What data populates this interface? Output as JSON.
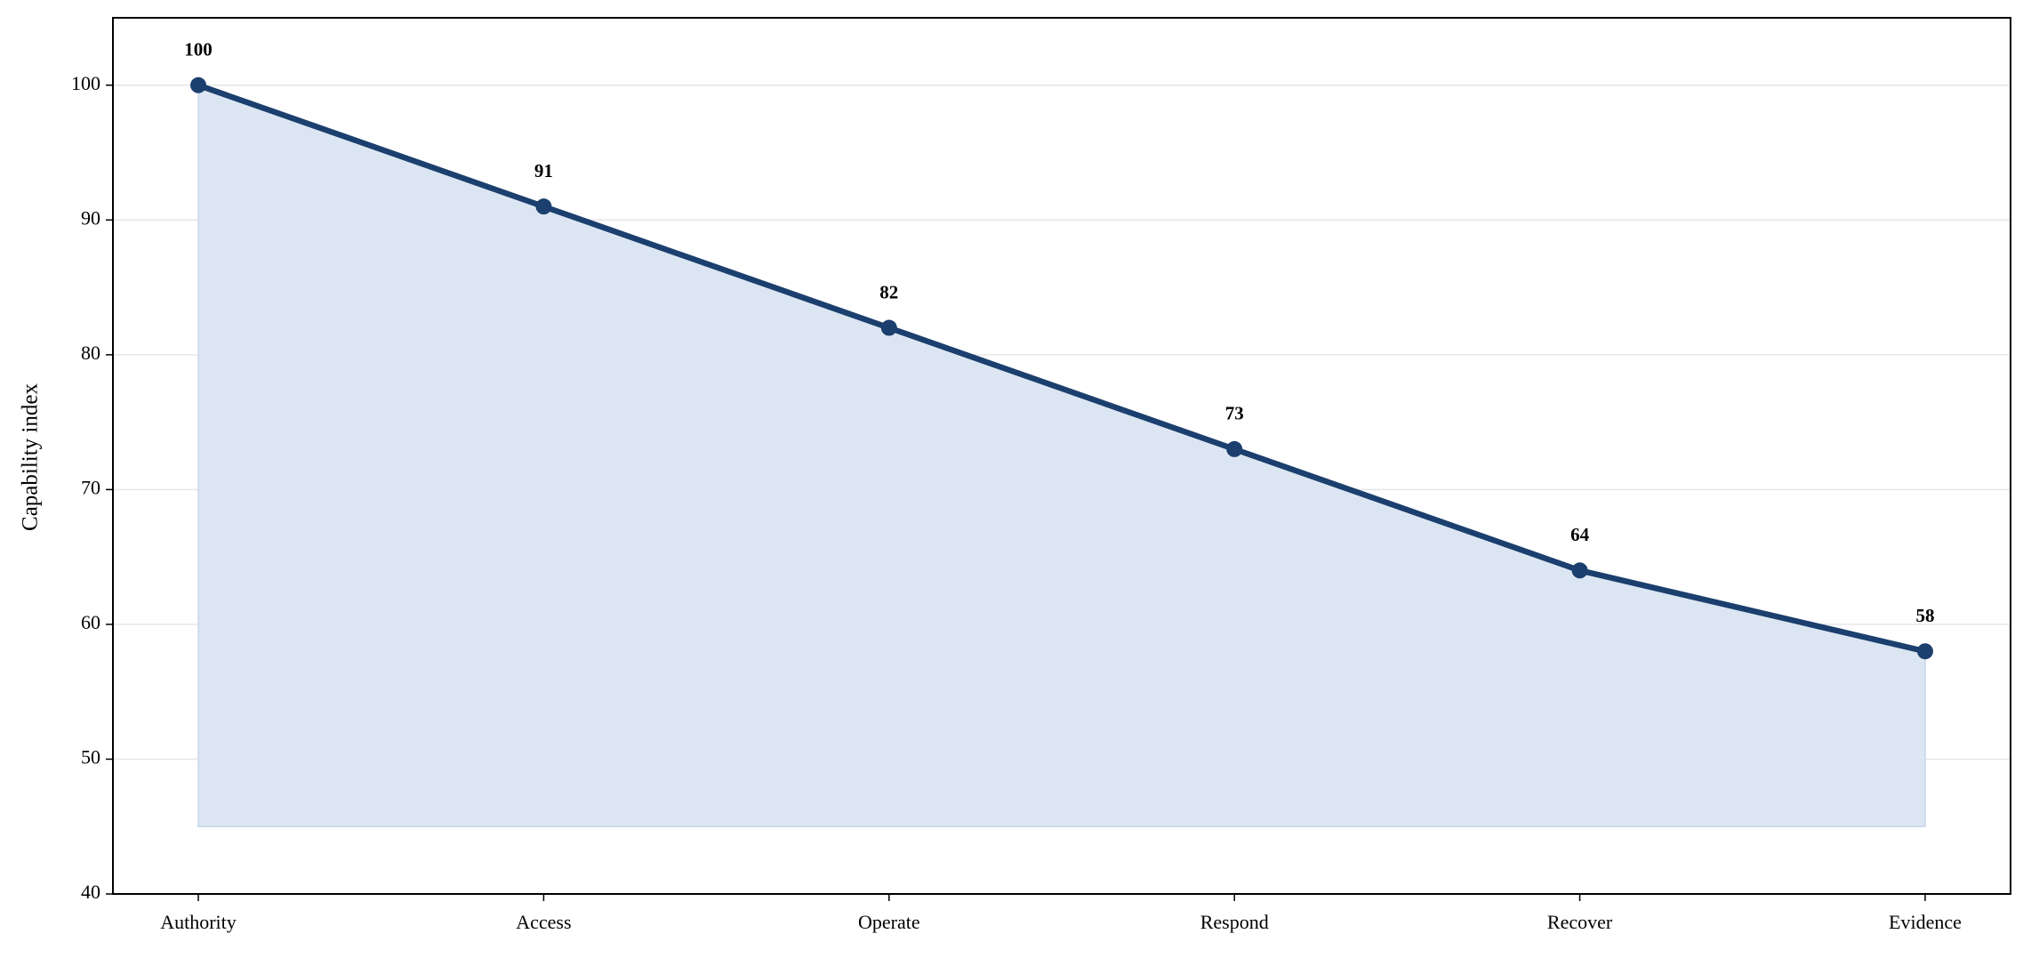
{
  "chart_data": {
    "type": "line",
    "y_label": "Capability index",
    "categories": [
      "Authority",
      "Access",
      "Operate",
      "Respond",
      "Recover",
      "Evidence"
    ],
    "series": [
      {
        "name": "Capability index",
        "color": "#1b3f6e",
        "values": [
          100,
          91,
          82,
          73,
          64,
          58
        ],
        "value_labels": [
          "100",
          "91",
          "82",
          "73",
          "64",
          "58"
        ]
      }
    ],
    "area_fill": "#dce6f2",
    "area_base": 45,
    "ylim": [
      40,
      105
    ],
    "yticks": [
      40,
      50,
      60,
      70,
      80,
      90,
      100
    ],
    "grid": true
  }
}
